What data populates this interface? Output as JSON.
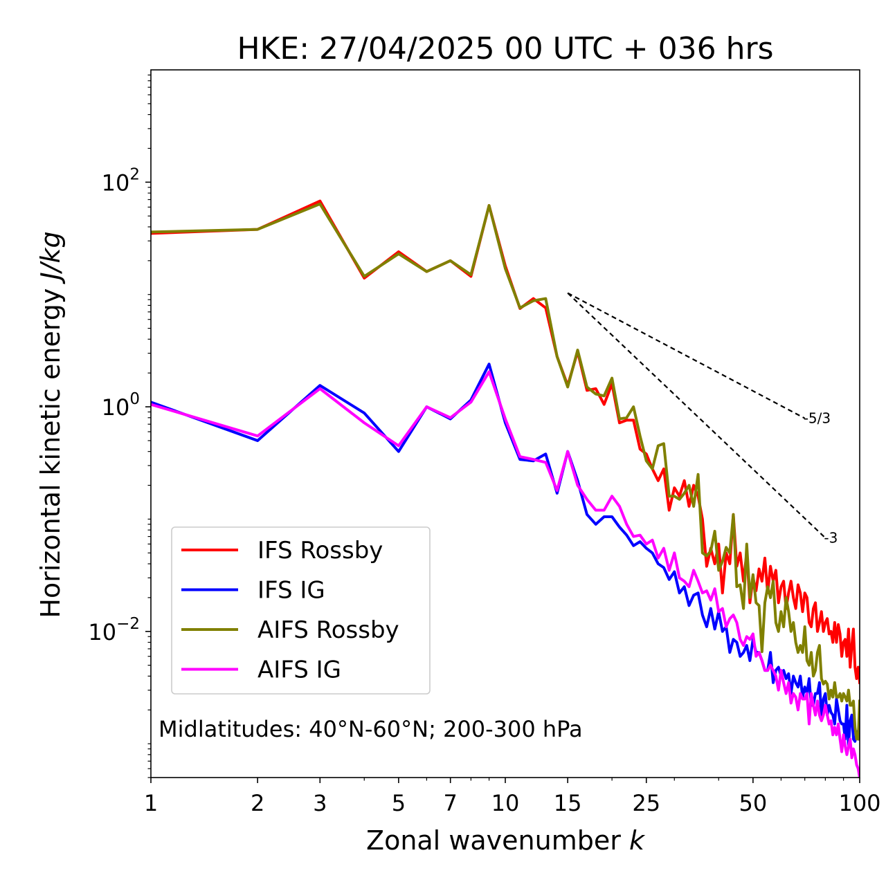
{
  "chart_data": {
    "type": "line",
    "title": "HKE: 27/04/2025 00 UTC + 036 hrs",
    "xlabel": "Zonal wavenumber",
    "xlabel_symbol": "k",
    "ylabel": "Horizontal kinetic energy",
    "ylabel_units": "J/kg",
    "xscale": "log",
    "yscale": "log",
    "xlim": [
      1,
      100
    ],
    "ylim": [
      0.0005,
      1000
    ],
    "x_ticks": [
      1,
      2,
      3,
      5,
      7,
      10,
      15,
      25,
      50,
      100
    ],
    "x_tick_labels": [
      "1",
      "2",
      "3",
      "5",
      "7",
      "10",
      "15",
      "25",
      "50",
      "100"
    ],
    "y_ticks": [
      0.01,
      1,
      100
    ],
    "y_tick_labels": [
      {
        "base": "10",
        "exp": "−2"
      },
      {
        "base": "10",
        "exp": "0"
      },
      {
        "base": "10",
        "exp": "2"
      }
    ],
    "grid": false,
    "legend": "lower-left",
    "annotation": "Midlatitudes: 40°N-60°N; 200-300 hPa",
    "reference_lines": [
      {
        "label": "-5/3",
        "slope": -1.6667,
        "x": [
          15,
          70
        ],
        "y": [
          10.3,
          0.79
        ],
        "color": "#000000"
      },
      {
        "label": "-3",
        "slope": -3,
        "x": [
          15,
          80
        ],
        "y": [
          10.3,
          0.068
        ],
        "color": "#000000"
      }
    ],
    "series": [
      {
        "name": "IFS Rossby",
        "color": "#ff0000",
        "x": [
          1,
          2,
          3,
          4,
          5,
          6,
          7,
          8,
          9,
          10,
          11,
          12,
          13,
          14,
          15,
          16,
          17,
          18,
          19,
          20,
          21,
          22,
          23,
          24,
          25,
          26,
          27,
          28,
          29,
          30,
          31,
          32,
          33,
          34,
          35,
          36,
          37,
          38,
          39,
          40,
          41,
          42,
          43,
          44,
          45,
          46,
          47,
          48,
          49,
          50,
          51,
          52,
          53,
          54,
          55,
          56,
          57,
          58,
          59,
          60,
          61,
          62,
          63,
          64,
          65,
          66,
          67,
          68,
          69,
          70,
          71,
          72,
          73,
          74,
          75,
          76,
          77,
          78,
          79,
          80,
          81,
          82,
          83,
          84,
          85,
          86,
          87,
          88,
          89,
          90,
          91,
          92,
          93,
          94,
          95,
          96,
          97,
          98,
          99,
          100
        ],
        "y": [
          35,
          38,
          68,
          14,
          24,
          16,
          20,
          14.5,
          62,
          18,
          7.5,
          9.2,
          7.6,
          2.8,
          1.55,
          3.1,
          1.4,
          1.45,
          1.05,
          1.6,
          0.72,
          0.76,
          0.76,
          0.42,
          0.38,
          0.28,
          0.22,
          0.28,
          0.12,
          0.19,
          0.16,
          0.22,
          0.13,
          0.2,
          0.16,
          0.1,
          0.038,
          0.055,
          0.04,
          0.06,
          0.022,
          0.05,
          0.04,
          0.11,
          0.038,
          0.05,
          0.028,
          0.05,
          0.018,
          0.03,
          0.023,
          0.036,
          0.028,
          0.045,
          0.022,
          0.038,
          0.028,
          0.035,
          0.018,
          0.025,
          0.028,
          0.016,
          0.022,
          0.028,
          0.02,
          0.016,
          0.026,
          0.022,
          0.015,
          0.022,
          0.02,
          0.012,
          0.011,
          0.016,
          0.018,
          0.01,
          0.012,
          0.015,
          0.01,
          0.012,
          0.013,
          0.0095,
          0.01,
          0.008,
          0.012,
          0.008,
          0.0115,
          0.0095,
          0.006,
          0.008,
          0.0085,
          0.006,
          0.0105,
          0.0048,
          0.0075,
          0.0105,
          0.0048,
          0.0038,
          0.0048,
          0.0035
        ]
      },
      {
        "name": "IFS IG",
        "color": "#0000ff",
        "x": [
          1,
          2,
          3,
          4,
          5,
          6,
          7,
          8,
          9,
          10,
          11,
          12,
          13,
          14,
          15,
          16,
          17,
          18,
          19,
          20,
          21,
          22,
          23,
          24,
          25,
          26,
          27,
          28,
          29,
          30,
          31,
          32,
          33,
          34,
          35,
          36,
          37,
          38,
          39,
          40,
          41,
          42,
          43,
          44,
          45,
          46,
          47,
          48,
          49,
          50,
          51,
          52,
          53,
          54,
          55,
          56,
          57,
          58,
          59,
          60,
          61,
          62,
          63,
          64,
          65,
          66,
          67,
          68,
          69,
          70,
          71,
          72,
          73,
          74,
          75,
          76,
          77,
          78,
          79,
          80,
          81,
          82,
          83,
          84,
          85,
          86,
          87,
          88,
          89,
          90,
          91,
          92,
          93,
          94,
          95,
          96,
          97,
          98,
          99,
          100
        ],
        "y": [
          1.1,
          0.5,
          1.55,
          0.88,
          0.4,
          1.0,
          0.78,
          1.15,
          2.4,
          0.72,
          0.34,
          0.33,
          0.38,
          0.17,
          0.4,
          0.22,
          0.11,
          0.09,
          0.105,
          0.105,
          0.085,
          0.072,
          0.058,
          0.063,
          0.055,
          0.05,
          0.04,
          0.037,
          0.029,
          0.034,
          0.022,
          0.025,
          0.017,
          0.021,
          0.022,
          0.014,
          0.011,
          0.016,
          0.0105,
          0.015,
          0.01,
          0.011,
          0.0065,
          0.0085,
          0.008,
          0.006,
          0.0065,
          0.0075,
          0.0055,
          0.0085,
          0.0065,
          0.0065,
          0.0055,
          0.0045,
          0.0045,
          0.0065,
          0.0035,
          0.0045,
          0.0048,
          0.004,
          0.0045,
          0.0038,
          0.0042,
          0.0028,
          0.004,
          0.0035,
          0.0032,
          0.004,
          0.0026,
          0.0032,
          0.0028,
          0.0038,
          0.0022,
          0.0022,
          0.0028,
          0.0028,
          0.0035,
          0.0018,
          0.0025,
          0.0028,
          0.0018,
          0.0022,
          0.0019,
          0.0018,
          0.0015,
          0.0025,
          0.002,
          0.0016,
          0.0015,
          0.0015,
          0.0011,
          0.0022,
          0.00095,
          0.0016,
          0.0018,
          0.0011,
          0.00105,
          0.00125,
          0.0013,
          0.0011
        ]
      },
      {
        "name": "AIFS Rossby",
        "color": "#808000",
        "x": [
          1,
          2,
          3,
          4,
          5,
          6,
          7,
          8,
          9,
          10,
          11,
          12,
          13,
          14,
          15,
          16,
          17,
          18,
          19,
          20,
          21,
          22,
          23,
          24,
          25,
          26,
          27,
          28,
          29,
          30,
          31,
          32,
          33,
          34,
          35,
          36,
          37,
          38,
          39,
          40,
          41,
          42,
          43,
          44,
          45,
          46,
          47,
          48,
          49,
          50,
          51,
          52,
          53,
          54,
          55,
          56,
          57,
          58,
          59,
          60,
          61,
          62,
          63,
          64,
          65,
          66,
          67,
          68,
          69,
          70,
          71,
          72,
          73,
          74,
          75,
          76,
          77,
          78,
          79,
          80,
          81,
          82,
          83,
          84,
          85,
          86,
          87,
          88,
          89,
          90,
          91,
          92,
          93,
          94,
          95,
          96,
          97,
          98,
          99,
          100
        ],
        "y": [
          36,
          38,
          64,
          14.5,
          23,
          16,
          20,
          15,
          62,
          17,
          7.6,
          8.8,
          9.2,
          2.8,
          1.5,
          3.2,
          1.5,
          1.3,
          1.25,
          1.8,
          0.78,
          0.8,
          1.0,
          0.55,
          0.33,
          0.28,
          0.45,
          0.47,
          0.16,
          0.16,
          0.15,
          0.17,
          0.2,
          0.13,
          0.25,
          0.05,
          0.047,
          0.052,
          0.078,
          0.035,
          0.042,
          0.056,
          0.05,
          0.11,
          0.025,
          0.026,
          0.016,
          0.06,
          0.02,
          0.032,
          0.018,
          0.017,
          0.0066,
          0.018,
          0.025,
          0.02,
          0.028,
          0.012,
          0.01,
          0.015,
          0.011,
          0.02,
          0.015,
          0.01,
          0.012,
          0.008,
          0.0065,
          0.0075,
          0.0065,
          0.011,
          0.0055,
          0.005,
          0.0065,
          0.004,
          0.0045,
          0.0065,
          0.0075,
          0.0038,
          0.0034,
          0.0036,
          0.0034,
          0.0025,
          0.003,
          0.0026,
          0.0035,
          0.0026,
          0.0026,
          0.0028,
          0.0024,
          0.0028,
          0.0026,
          0.0024,
          0.003,
          0.0022,
          0.0022,
          0.0024,
          0.0014,
          0.0011,
          0.0011,
          0.0024
        ]
      },
      {
        "name": "AIFS IG",
        "color": "#ff00ff",
        "x": [
          1,
          2,
          3,
          4,
          5,
          6,
          7,
          8,
          9,
          10,
          11,
          12,
          13,
          14,
          15,
          16,
          17,
          18,
          19,
          20,
          21,
          22,
          23,
          24,
          25,
          26,
          27,
          28,
          29,
          30,
          31,
          32,
          33,
          34,
          35,
          36,
          37,
          38,
          39,
          40,
          41,
          42,
          43,
          44,
          45,
          46,
          47,
          48,
          49,
          50,
          51,
          52,
          53,
          54,
          55,
          56,
          57,
          58,
          59,
          60,
          61,
          62,
          63,
          64,
          65,
          66,
          67,
          68,
          69,
          70,
          71,
          72,
          73,
          74,
          75,
          76,
          77,
          78,
          79,
          80,
          81,
          82,
          83,
          84,
          85,
          86,
          87,
          88,
          89,
          90,
          91,
          92,
          93,
          94,
          95,
          96,
          97,
          98,
          99,
          100
        ],
        "y": [
          1.05,
          0.55,
          1.45,
          0.72,
          0.45,
          1.0,
          0.8,
          1.1,
          2.05,
          0.78,
          0.36,
          0.34,
          0.32,
          0.18,
          0.4,
          0.2,
          0.15,
          0.12,
          0.12,
          0.16,
          0.13,
          0.09,
          0.07,
          0.072,
          0.06,
          0.065,
          0.045,
          0.055,
          0.035,
          0.05,
          0.03,
          0.028,
          0.025,
          0.035,
          0.028,
          0.022,
          0.023,
          0.019,
          0.024,
          0.015,
          0.016,
          0.011,
          0.013,
          0.014,
          0.012,
          0.0085,
          0.0075,
          0.009,
          0.0085,
          0.0095,
          0.006,
          0.0065,
          0.0055,
          0.0045,
          0.0045,
          0.005,
          0.0045,
          0.004,
          0.003,
          0.0045,
          0.0035,
          0.0028,
          0.0035,
          0.0023,
          0.0028,
          0.0026,
          0.002,
          0.0028,
          0.0025,
          0.0025,
          0.0028,
          0.0015,
          0.0028,
          0.0022,
          0.0018,
          0.0024,
          0.0018,
          0.0016,
          0.0018,
          0.0022,
          0.0018,
          0.0015,
          0.0016,
          0.0012,
          0.0014,
          0.0012,
          0.0015,
          0.0011,
          0.00085,
          0.0012,
          0.00095,
          0.0008,
          0.00095,
          0.0011,
          0.00075,
          0.0009,
          0.0008,
          0.00065,
          0.0006,
          0.0005
        ]
      }
    ]
  }
}
